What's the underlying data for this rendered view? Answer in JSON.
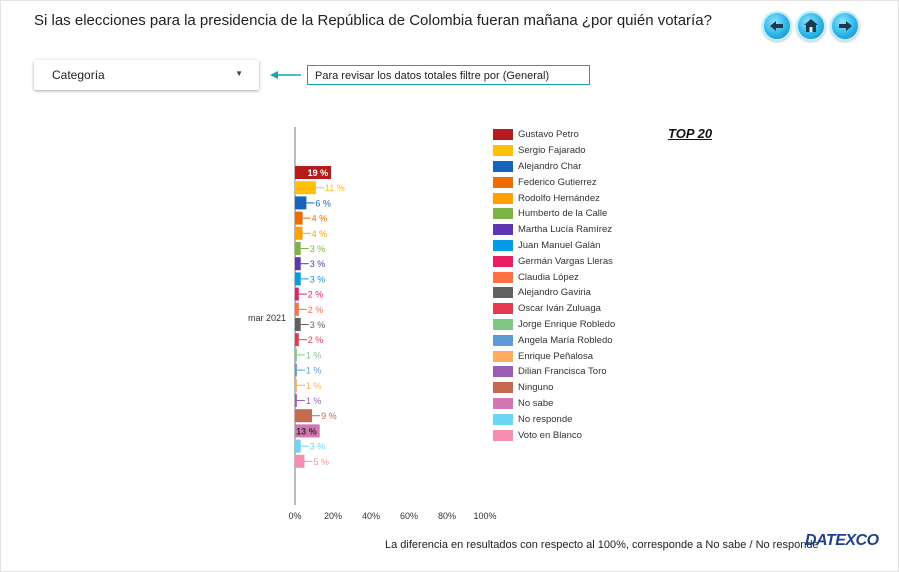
{
  "header": {
    "title": "Si las elecciones para la presidencia de la República de Colombia fueran mañana ¿por quién votaría?"
  },
  "nav": {
    "back_icon": "arrow-left-icon",
    "home_icon": "home-icon",
    "forward_icon": "arrow-right-icon"
  },
  "filter": {
    "label": "Categoría",
    "hint": "Para revisar los datos totales filtre por (General)"
  },
  "top_label": "TOP 20",
  "chart_data": {
    "type": "bar",
    "orientation": "horizontal",
    "category": "mar 2021",
    "xlim": [
      0,
      100
    ],
    "xticks": [
      "0%",
      "20%",
      "40%",
      "60%",
      "80%",
      "100%"
    ],
    "series": [
      {
        "name": "Gustavo Petro",
        "value": 19,
        "label": "19 %",
        "color": "#b71c1c"
      },
      {
        "name": "Sergio Fajarado",
        "value": 11,
        "label": "11 %",
        "color": "#ffc107"
      },
      {
        "name": "Alejandro Char",
        "value": 6,
        "label": "6 %",
        "color": "#1565c0"
      },
      {
        "name": "Federico Gutierrez",
        "value": 4,
        "label": "4 %",
        "color": "#ef6c00"
      },
      {
        "name": "Rodolfo Hernández",
        "value": 4,
        "label": "4 %",
        "color": "#ffa000"
      },
      {
        "name": "Humberto de la Calle",
        "value": 3,
        "label": "3 %",
        "color": "#7cb342"
      },
      {
        "name": "Martha Lucía Ramírez",
        "value": 3,
        "label": "3 %",
        "color": "#5e35b1"
      },
      {
        "name": "Juan Manuel Galán",
        "value": 3,
        "label": "3 %",
        "color": "#039be5"
      },
      {
        "name": "Germán Vargas Lleras",
        "value": 2,
        "label": "2 %",
        "color": "#e91e63"
      },
      {
        "name": "Claudia López",
        "value": 2,
        "label": "2 %",
        "color": "#ff7043"
      },
      {
        "name": "Alejandro Gaviria",
        "value": 3,
        "label": "3 %",
        "color": "#616161"
      },
      {
        "name": "Oscar Iván Zuluaga",
        "value": 2,
        "label": "2 %",
        "color": "#e53950"
      },
      {
        "name": "Jorge Enrique Robledo",
        "value": 1,
        "label": "1 %",
        "color": "#81c784"
      },
      {
        "name": "Angela María Robledo",
        "value": 1,
        "label": "1 %",
        "color": "#5c9bd6"
      },
      {
        "name": "Enrique Peñalosa",
        "value": 1,
        "label": "1 %",
        "color": "#ffab60"
      },
      {
        "name": "Dilian Francisca Toro",
        "value": 1,
        "label": "1 %",
        "color": "#9c5eb5"
      },
      {
        "name": "Ninguno",
        "value": 9,
        "label": "9 %",
        "color": "#c56a50"
      },
      {
        "name": "No sabe",
        "value": 13,
        "label": "13 %",
        "color": "#d276b4"
      },
      {
        "name": "No responde",
        "value": 3,
        "label": "3 %",
        "color": "#6ad6f5"
      },
      {
        "name": "Voto en Blanco",
        "value": 5,
        "label": "5 %",
        "color": "#f48fb1"
      }
    ]
  },
  "footer": {
    "note": "La diferencia en resultados con respecto al 100%, corresponde a No sabe / No responde",
    "logo": "DATEXCO"
  }
}
